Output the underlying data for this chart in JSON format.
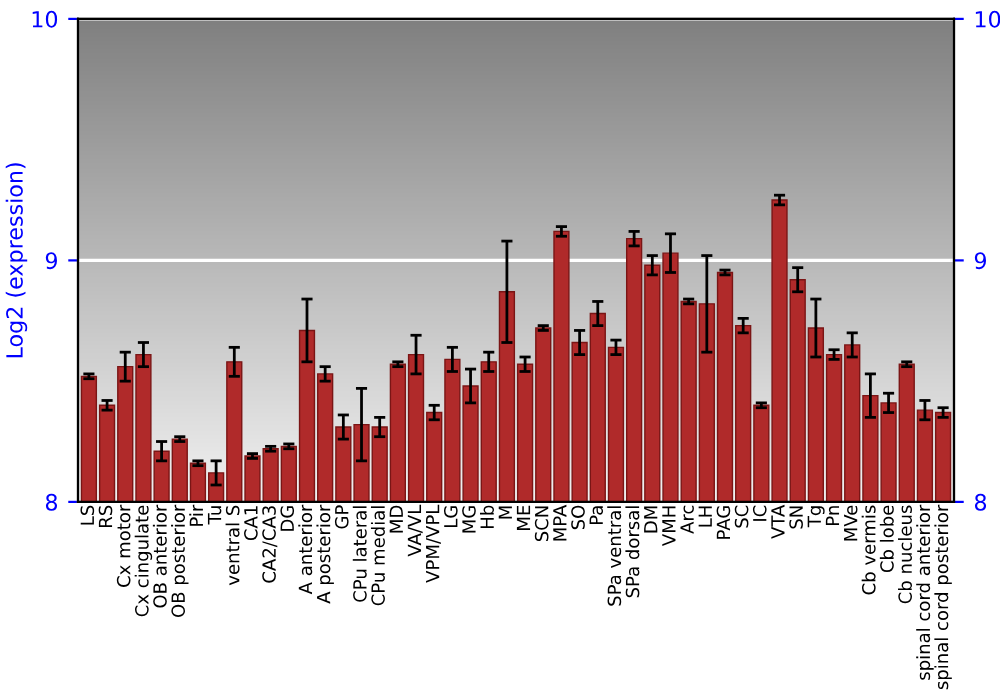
{
  "chart_data": {
    "type": "bar",
    "ylabel": "Log2 (expression)",
    "categories": [
      "LS",
      "RS",
      "Cx motor",
      "Cx cingulate",
      "OB anterior",
      "OB posterior",
      "Pir",
      "Tu",
      "ventral S",
      "CA1",
      "CA2/CA3",
      "DG",
      "A anterior",
      "A posterior",
      "GP",
      "CPu lateral",
      "CPu medial",
      "MD",
      "VA/VL",
      "VPM/VPL",
      "LG",
      "MG",
      "Hb",
      "M",
      "ME",
      "SCN",
      "MPA",
      "SO",
      "Pa",
      "SPa ventral",
      "SPa dorsal",
      "DM",
      "VMH",
      "Arc",
      "LH",
      "PAG",
      "SC",
      "IC",
      "VTA",
      "SN",
      "Tg",
      "Pn",
      "MVe",
      "Cb vermis",
      "Cb lobe",
      "Cb nucleus",
      "spinal cord anterior",
      "spinal cord posterior"
    ],
    "values": [
      8.52,
      8.4,
      8.56,
      8.61,
      8.21,
      8.26,
      8.16,
      8.12,
      8.58,
      8.19,
      8.22,
      8.23,
      8.71,
      8.53,
      8.31,
      8.32,
      8.31,
      8.57,
      8.61,
      8.37,
      8.59,
      8.48,
      8.58,
      8.87,
      8.57,
      8.72,
      9.12,
      8.66,
      8.78,
      8.64,
      9.09,
      8.98,
      9.03,
      8.83,
      8.82,
      8.95,
      8.73,
      8.4,
      9.25,
      8.92,
      8.72,
      8.61,
      8.65,
      8.44,
      8.41,
      8.57,
      8.38,
      8.37
    ],
    "errors": [
      0.01,
      0.02,
      0.06,
      0.05,
      0.04,
      0.01,
      0.01,
      0.05,
      0.06,
      0.01,
      0.01,
      0.01,
      0.13,
      0.03,
      0.05,
      0.15,
      0.04,
      0.01,
      0.08,
      0.03,
      0.05,
      0.07,
      0.04,
      0.21,
      0.03,
      0.01,
      0.02,
      0.05,
      0.05,
      0.03,
      0.03,
      0.04,
      0.08,
      0.01,
      0.2,
      0.01,
      0.03,
      0.01,
      0.02,
      0.05,
      0.12,
      0.02,
      0.05,
      0.09,
      0.04,
      0.01,
      0.04,
      0.02
    ],
    "color": "#b02a2a",
    "ylim": [
      8,
      10
    ],
    "yticks": [
      8,
      9,
      10
    ],
    "y2lim": [
      8,
      10
    ],
    "y2ticks": [
      8,
      9,
      10
    ],
    "grid": "y"
  }
}
